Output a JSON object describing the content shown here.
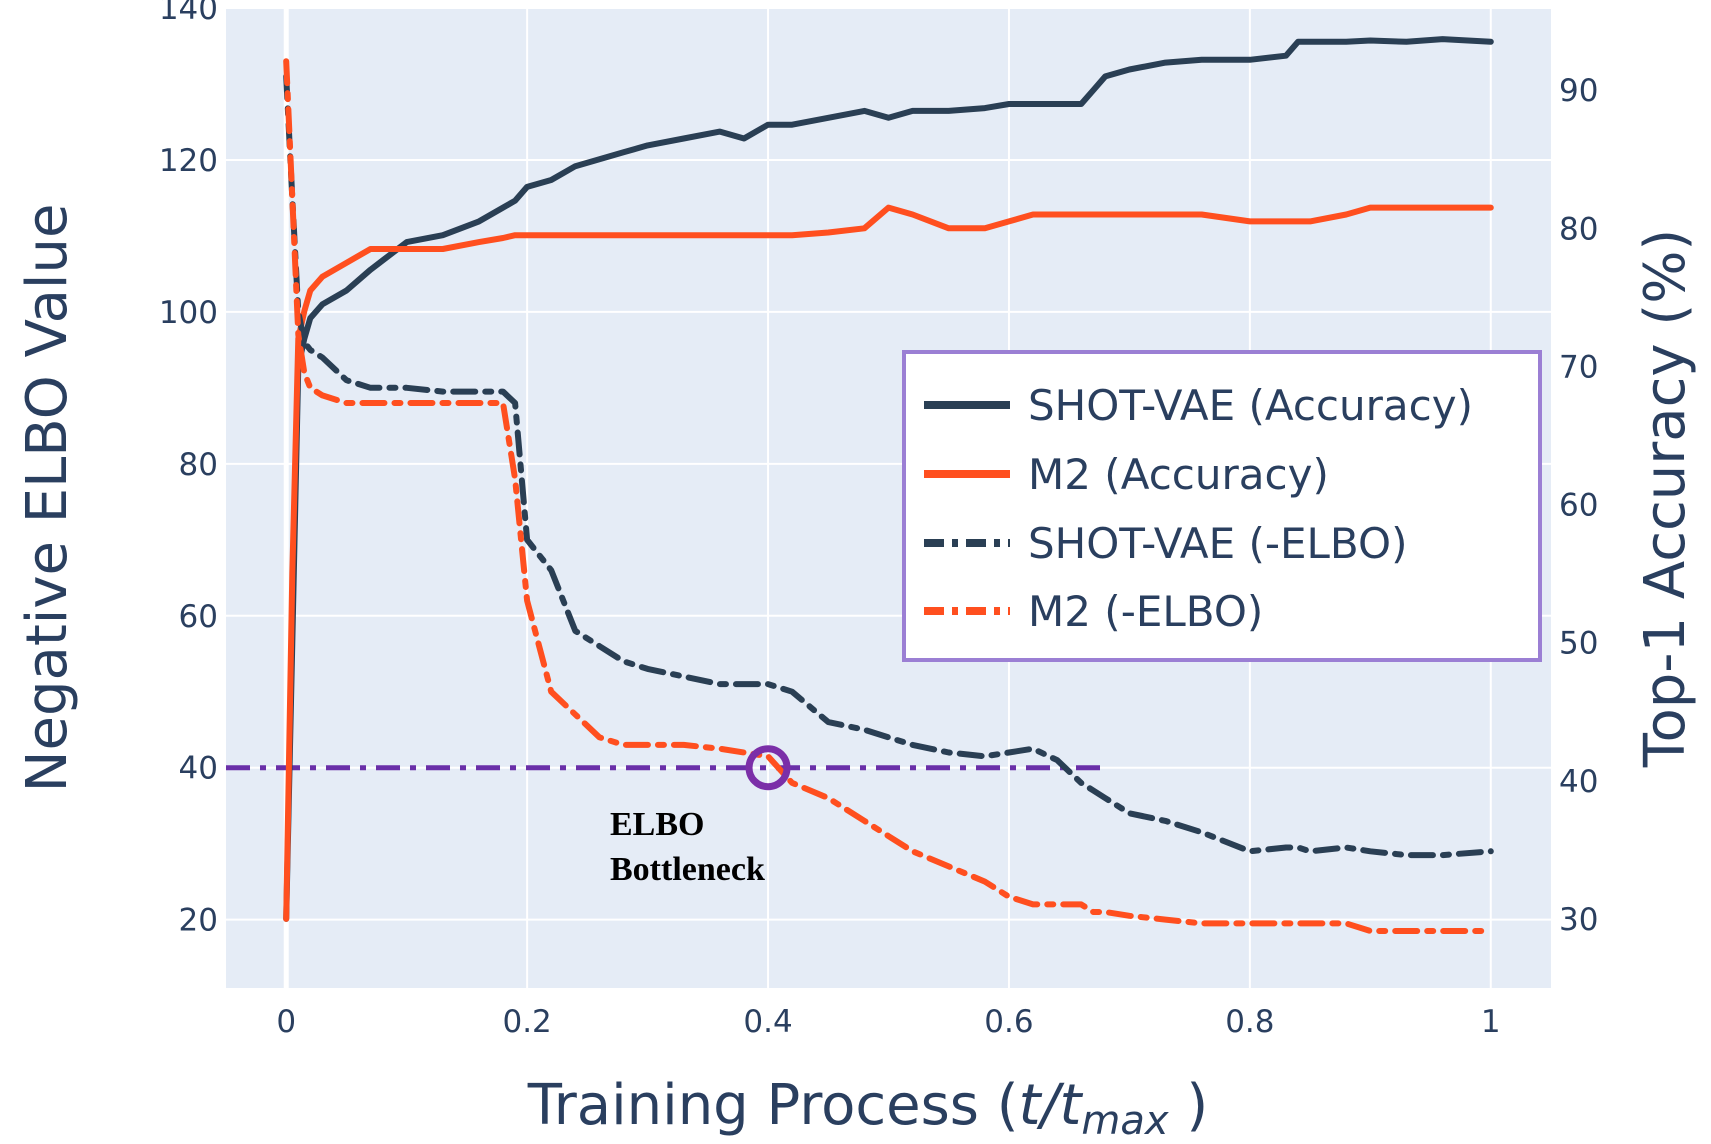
{
  "chart_data": {
    "type": "line",
    "x": [
      0,
      0.005,
      0.01,
      0.015,
      0.02,
      0.03,
      0.05,
      0.07,
      0.1,
      0.13,
      0.16,
      0.18,
      0.19,
      0.2,
      0.22,
      0.24,
      0.26,
      0.28,
      0.3,
      0.33,
      0.36,
      0.38,
      0.4,
      0.42,
      0.45,
      0.48,
      0.5,
      0.52,
      0.55,
      0.58,
      0.6,
      0.62,
      0.64,
      0.66,
      0.67,
      0.68,
      0.7,
      0.73,
      0.76,
      0.8,
      0.83,
      0.84,
      0.85,
      0.88,
      0.9,
      0.93,
      0.96,
      1.0
    ],
    "xlim": [
      -0.05,
      1.05
    ],
    "xticks": [
      0,
      0.2,
      0.4,
      0.6,
      0.8,
      1
    ],
    "xtick_labels": [
      "0",
      "0.2",
      "0.4",
      "0.6",
      "0.8",
      "1"
    ],
    "xlabel": "Training Process (",
    "xlabel_var": "t/t",
    "xlabel_sub": "max",
    "xlabel_end": " )",
    "y_left": {
      "label": "Negative ELBO Value",
      "range": [
        11,
        140
      ],
      "ticks": [
        20,
        40,
        60,
        80,
        100,
        120,
        140
      ],
      "tick_labels": [
        "20",
        "40",
        "60",
        "80",
        "100",
        "120",
        "140"
      ]
    },
    "y_right": {
      "label": "Top-1 Accuracy (%)",
      "range": [
        25,
        95.95
      ],
      "ticks": [
        30,
        40,
        50,
        60,
        70,
        80,
        90
      ],
      "tick_labels": [
        "30",
        "40",
        "50",
        "60",
        "70",
        "80",
        "90"
      ]
    },
    "series": [
      {
        "name": "SHOT-VAE (Accuracy)",
        "axis": "right",
        "style": "solid",
        "color": "#2a3f54",
        "values": [
          30,
          50,
          70,
          72,
          73.5,
          74.5,
          75.5,
          77,
          79,
          79.5,
          80.5,
          81.5,
          82,
          83,
          83.5,
          84.5,
          85,
          85.5,
          86,
          86.5,
          87,
          86.5,
          87.5,
          87.5,
          88,
          88.5,
          88,
          88.5,
          88.5,
          88.7,
          89,
          89,
          89,
          89,
          90,
          91,
          91.5,
          92,
          92.2,
          92.2,
          92.5,
          93.5,
          93.5,
          93.5,
          93.6,
          93.5,
          93.7,
          93.5
        ]
      },
      {
        "name": "M2 (Accuracy)",
        "axis": "right",
        "style": "solid",
        "color": "#ff4f1f",
        "values": [
          30,
          55,
          72,
          74,
          75.5,
          76.5,
          77.5,
          78.5,
          78.5,
          78.5,
          79,
          79.3,
          79.5,
          79.5,
          79.5,
          79.5,
          79.5,
          79.5,
          79.5,
          79.5,
          79.5,
          79.5,
          79.5,
          79.5,
          79.7,
          80,
          81.5,
          81,
          80,
          80,
          80.5,
          81,
          81,
          81,
          81,
          81,
          81,
          81,
          81,
          80.5,
          80.5,
          80.5,
          80.5,
          81,
          81.5,
          81.5,
          81.5,
          81.5
        ]
      },
      {
        "name": "SHOT-VAE (-ELBO)",
        "axis": "left",
        "style": "dashdot",
        "color": "#2a3f54",
        "values": [
          131,
          115,
          100,
          96,
          95,
          94,
          91,
          90,
          90,
          89.5,
          89.5,
          89.5,
          88,
          70,
          66,
          58,
          56,
          54,
          53,
          52,
          51,
          51,
          51,
          50,
          46,
          45,
          44,
          43,
          42,
          41.5,
          42,
          42.5,
          41,
          38,
          37,
          36,
          34,
          33,
          31.5,
          29,
          29.5,
          29.5,
          29,
          29.5,
          29,
          28.5,
          28.5,
          29
        ]
      },
      {
        "name": "M2 (-ELBO)",
        "axis": "left",
        "style": "dashdot",
        "color": "#ff4f1f",
        "values": [
          133,
          115,
          97,
          92,
          90,
          89,
          88,
          88,
          88,
          88,
          88,
          88,
          78,
          62,
          50,
          47,
          44,
          43,
          43,
          43,
          42.5,
          42,
          41.5,
          38,
          36,
          33,
          31,
          29,
          27,
          25,
          23,
          22,
          22,
          22,
          21,
          21,
          20.5,
          20,
          19.5,
          19.5,
          19.5,
          19.5,
          19.5,
          19.5,
          18.5,
          18.5,
          18.5,
          18.5
        ]
      }
    ],
    "reference_line": {
      "value": 40,
      "axis": "left",
      "x_range": [
        -0.05,
        0.68
      ],
      "style": "dashdot",
      "color": "#6a2fa8"
    },
    "marker": {
      "x": 0.4,
      "y": 40,
      "axis": "left",
      "shape": "circle",
      "color": "#7b2fa8"
    },
    "annotations": [
      "ELBO",
      "Bottleneck"
    ],
    "legend": {
      "placement": "center-right",
      "border_color": "#9b7fd4",
      "entries": [
        "SHOT-VAE (Accuracy)",
        "M2 (Accuracy)",
        "SHOT-VAE (-ELBO)",
        "M2 (-ELBO)"
      ]
    }
  }
}
